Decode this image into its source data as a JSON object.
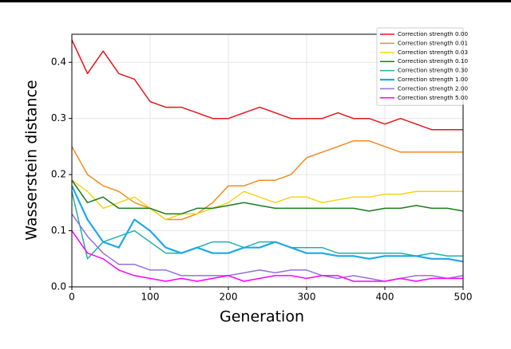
{
  "chart_data": {
    "type": "line",
    "x_label": "Generation",
    "y_label": "Wasserstein distance",
    "x": [
      0,
      20,
      40,
      60,
      80,
      100,
      120,
      140,
      160,
      180,
      200,
      220,
      240,
      260,
      280,
      300,
      320,
      340,
      360,
      380,
      400,
      420,
      440,
      460,
      480,
      500
    ],
    "xlim": [
      0,
      500
    ],
    "ylim": [
      0,
      0.45
    ],
    "xticks": [
      0,
      100,
      200,
      300,
      400,
      500
    ],
    "yticks": [
      {
        "value": 0,
        "label": "0.0"
      },
      0.1,
      0.2,
      0.3,
      0.4
    ],
    "grid": true,
    "legend": "upper right",
    "series": [
      {
        "name": "Correction strength 0.00",
        "color": "#e8141a",
        "values": [
          0.44,
          0.38,
          0.42,
          0.38,
          0.37,
          0.33,
          0.32,
          0.32,
          0.31,
          0.3,
          0.3,
          0.31,
          0.32,
          0.31,
          0.3,
          0.3,
          0.3,
          0.31,
          0.3,
          0.3,
          0.29,
          0.3,
          0.29,
          0.28,
          0.28,
          0.28
        ]
      },
      {
        "name": "Correction strength 0.01",
        "color": "#f28b1e",
        "values": [
          0.25,
          0.2,
          0.18,
          0.17,
          0.15,
          0.14,
          0.12,
          0.12,
          0.13,
          0.15,
          0.18,
          0.18,
          0.19,
          0.19,
          0.2,
          0.23,
          0.24,
          0.25,
          0.26,
          0.26,
          0.25,
          0.24,
          0.24,
          0.24,
          0.24,
          0.24
        ]
      },
      {
        "name": "Correction strength 0.03",
        "color": "#f5d518",
        "values": [
          0.19,
          0.17,
          0.14,
          0.15,
          0.16,
          0.14,
          0.12,
          0.13,
          0.13,
          0.14,
          0.15,
          0.17,
          0.16,
          0.15,
          0.16,
          0.16,
          0.15,
          0.155,
          0.16,
          0.16,
          0.165,
          0.165,
          0.17,
          0.17,
          0.17,
          0.17
        ]
      },
      {
        "name": "Correction strength 0.10",
        "color": "#1a7a1a",
        "values": [
          0.19,
          0.15,
          0.16,
          0.14,
          0.14,
          0.14,
          0.13,
          0.13,
          0.14,
          0.14,
          0.145,
          0.15,
          0.145,
          0.14,
          0.14,
          0.14,
          0.14,
          0.14,
          0.14,
          0.135,
          0.14,
          0.14,
          0.145,
          0.14,
          0.14,
          0.135
        ]
      },
      {
        "name": "Correction strength 0.30",
        "color": "#20b2aa",
        "values": [
          0.17,
          0.05,
          0.08,
          0.09,
          0.1,
          0.08,
          0.06,
          0.06,
          0.07,
          0.08,
          0.08,
          0.07,
          0.08,
          0.08,
          0.07,
          0.07,
          0.07,
          0.06,
          0.06,
          0.06,
          0.06,
          0.06,
          0.055,
          0.06,
          0.055,
          0.055
        ]
      },
      {
        "name": "Correction strength 1.00",
        "color": "#1ea8e8",
        "values": [
          0.18,
          0.12,
          0.08,
          0.07,
          0.12,
          0.1,
          0.07,
          0.06,
          0.07,
          0.06,
          0.06,
          0.07,
          0.07,
          0.08,
          0.07,
          0.06,
          0.06,
          0.055,
          0.055,
          0.05,
          0.055,
          0.055,
          0.055,
          0.05,
          0.05,
          0.045
        ]
      },
      {
        "name": "Correction strength 2.00",
        "color": "#9370db",
        "values": [
          0.13,
          0.09,
          0.06,
          0.04,
          0.04,
          0.03,
          0.03,
          0.02,
          0.02,
          0.02,
          0.02,
          0.025,
          0.03,
          0.025,
          0.03,
          0.03,
          0.02,
          0.015,
          0.02,
          0.015,
          0.01,
          0.015,
          0.02,
          0.02,
          0.015,
          0.02
        ]
      },
      {
        "name": "Correction strength 5.00",
        "color": "#ff00ff",
        "values": [
          0.1,
          0.06,
          0.05,
          0.03,
          0.02,
          0.015,
          0.01,
          0.015,
          0.01,
          0.015,
          0.02,
          0.01,
          0.015,
          0.02,
          0.02,
          0.015,
          0.02,
          0.02,
          0.01,
          0.01,
          0.01,
          0.015,
          0.01,
          0.015,
          0.015,
          0.015
        ]
      }
    ]
  }
}
